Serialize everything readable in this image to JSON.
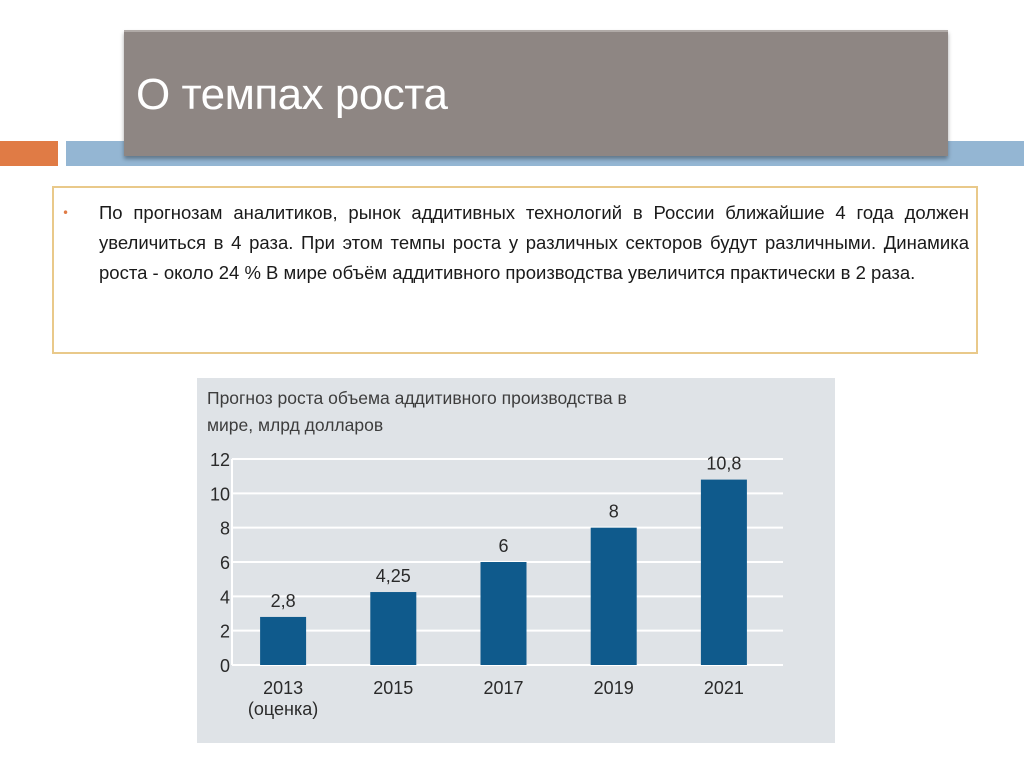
{
  "slide": {
    "title": "О темпах роста",
    "bullet_text": "По прогнозам аналитиков, рынок аддитивных технологий в России ближайшие 4 года должен увеличиться в 4 раза. При этом темпы роста у различных секторов будут различными. Динамика роста - около 24 % В мире объём аддитивного производства увеличится практически в 2 раза.",
    "colors": {
      "title_bg": "#8e8683",
      "accent_orange": "#e07b45",
      "accent_blue": "#94b6d3",
      "text_border": "#e9c98a"
    }
  },
  "chart_data": {
    "type": "bar",
    "title_lines": [
      "Прогноз роста объема аддитивного производства в",
      "мире, млрд долларов"
    ],
    "categories": [
      "2013",
      "2015",
      "2017",
      "2019",
      "2021"
    ],
    "category_sublabels": [
      "(оценка)",
      "",
      "",
      "",
      ""
    ],
    "values": [
      2.8,
      4.25,
      6,
      8,
      10.8
    ],
    "data_labels": [
      "2,8",
      "4,25",
      "6",
      "8",
      "10,8"
    ],
    "yticks": [
      "0",
      "2",
      "4",
      "6",
      "8",
      "10",
      "12"
    ],
    "ylim": [
      0,
      12
    ],
    "grid": true,
    "bar_color": "#0f5a8c",
    "background": "#dfe3e7"
  }
}
